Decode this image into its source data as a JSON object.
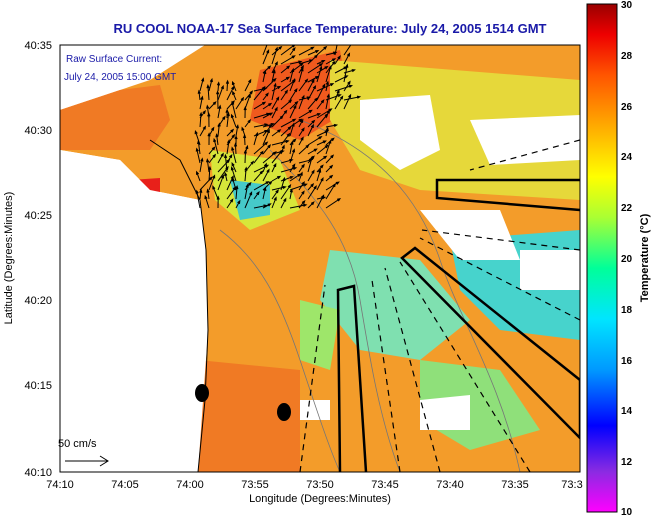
{
  "map": {
    "title": "RU COOL  NOAA-17  Sea Surface Temperature:  July 24, 2005 1514 GMT",
    "xlabel": "Longitude (Degrees:Minutes)",
    "ylabel": "Latitude (Degrees:Minutes)",
    "x_ticks": [
      "74:10",
      "74:05",
      "74:00",
      "73:55",
      "73:50",
      "73:45",
      "73:40",
      "73:35",
      "73:3"
    ],
    "y_ticks": [
      "40:35",
      "40:30",
      "40:25",
      "40:20",
      "40:15",
      "40:10"
    ],
    "current_note_line1": "Raw Surface Current:",
    "current_note_line2": "July 24, 2005 15:00 GMT",
    "scale_label": "50 cm/s",
    "ocean_warm_color": "#f39c2a",
    "ocean_cool_color": "#3fd2d6",
    "land_color": "#ffffff"
  },
  "colorbar": {
    "label": "Temperature (°C)",
    "ticks": [
      "30",
      "28",
      "26",
      "24",
      "22",
      "20",
      "18",
      "16",
      "14",
      "12",
      "10"
    ],
    "min": 10,
    "max": 30,
    "stops": [
      "#ff00ff",
      "#8a2be2",
      "#0000ff",
      "#0099ff",
      "#00e5ff",
      "#00ff99",
      "#aaff33",
      "#ffff00",
      "#ffaa00",
      "#ff5500",
      "#ee0000",
      "#990000"
    ]
  }
}
